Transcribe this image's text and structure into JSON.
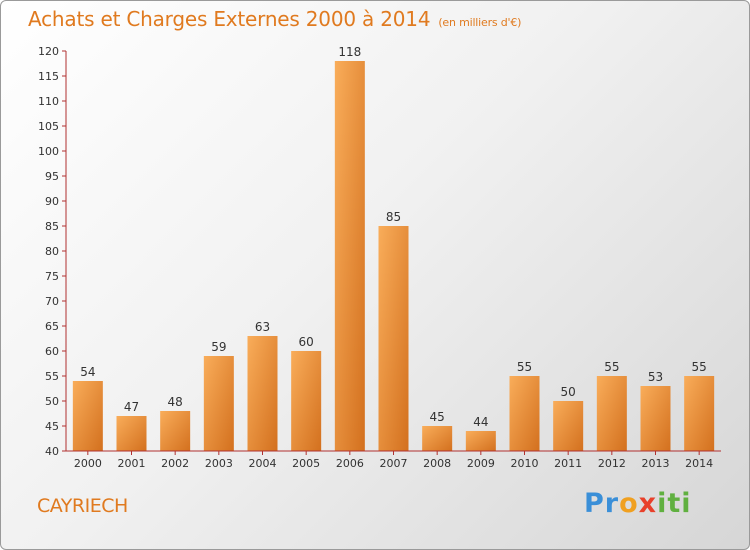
{
  "title": "Achats et Charges Externes 2000 à 2014",
  "subtitle": "(en milliers d'€)",
  "commune": "CAYRIECH",
  "logo": {
    "p1": "Pr",
    "p2": "o",
    "p3": "x",
    "p4": "iti"
  },
  "colors": {
    "accent": "#e07a1f",
    "bar_light": "#f7a852",
    "bar_dark": "#d8721f",
    "axis": "#b03030"
  },
  "chart_data": {
    "type": "bar",
    "title": "Achats et Charges Externes 2000 à 2014",
    "subtitle": "(en milliers d'€)",
    "categories": [
      "2000",
      "2001",
      "2002",
      "2003",
      "2004",
      "2005",
      "2006",
      "2007",
      "2008",
      "2009",
      "2010",
      "2011",
      "2012",
      "2013",
      "2014"
    ],
    "values": [
      54,
      47,
      48,
      59,
      63,
      60,
      118,
      85,
      45,
      44,
      55,
      50,
      55,
      53,
      55
    ],
    "ylim": [
      40,
      120
    ],
    "yticks": [
      40,
      45,
      50,
      55,
      60,
      65,
      70,
      75,
      80,
      85,
      90,
      95,
      100,
      105,
      110,
      115,
      120
    ],
    "grid": false,
    "legend": "none"
  }
}
